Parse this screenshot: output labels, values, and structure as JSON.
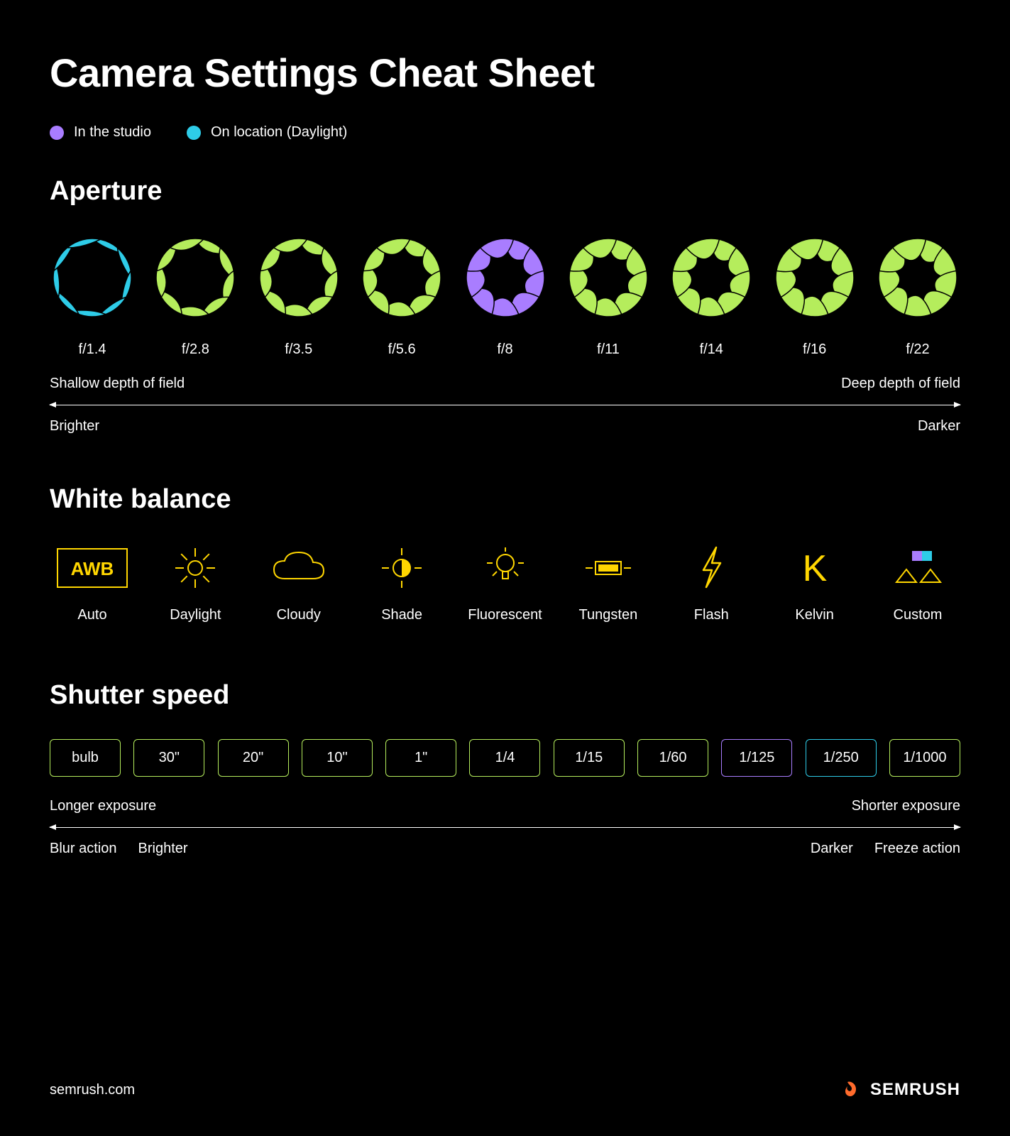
{
  "title": "Camera Settings Cheat Sheet",
  "colors": {
    "green": "#b5ed5c",
    "purple": "#a97dff",
    "cyan": "#2ecce8",
    "yellow": "#ffd600",
    "orange": "#ff6b2c",
    "white": "#ffffff",
    "black": "#000000"
  },
  "legend": {
    "items": [
      {
        "color": "#a97dff",
        "label": "In the studio"
      },
      {
        "color": "#2ecce8",
        "label": "On location (Daylight)"
      }
    ]
  },
  "aperture": {
    "title": "Aperture",
    "items": [
      {
        "label": "f/1.4",
        "color": "#2ecce8",
        "opening": 0.8
      },
      {
        "label": "f/2.8",
        "color": "#b5ed5c",
        "opening": 0.6
      },
      {
        "label": "f/3.5",
        "color": "#b5ed5c",
        "opening": 0.48
      },
      {
        "label": "f/5.6",
        "color": "#b5ed5c",
        "opening": 0.35
      },
      {
        "label": "f/8",
        "color": "#a97dff",
        "opening": 0.15
      },
      {
        "label": "f/11",
        "color": "#b5ed5c",
        "opening": 0.15
      },
      {
        "label": "f/14",
        "color": "#b5ed5c",
        "opening": 0.1
      },
      {
        "label": "f/16",
        "color": "#b5ed5c",
        "opening": 0.06
      },
      {
        "label": "f/22",
        "color": "#b5ed5c",
        "opening": 0.02
      }
    ],
    "scale_top_left": "Shallow depth of field",
    "scale_top_right": "Deep depth of field",
    "scale_bottom_left": "Brighter",
    "scale_bottom_right": "Darker"
  },
  "white_balance": {
    "title": "White balance",
    "items": [
      {
        "label": "Auto",
        "icon": "awb"
      },
      {
        "label": "Daylight",
        "icon": "sun"
      },
      {
        "label": "Cloudy",
        "icon": "cloud"
      },
      {
        "label": "Shade",
        "icon": "shade"
      },
      {
        "label": "Fluorescent",
        "icon": "fluorescent"
      },
      {
        "label": "Tungsten",
        "icon": "tungsten"
      },
      {
        "label": "Flash",
        "icon": "flash"
      },
      {
        "label": "Kelvin",
        "icon": "kelvin"
      },
      {
        "label": "Custom",
        "icon": "custom"
      }
    ]
  },
  "shutter": {
    "title": "Shutter speed",
    "items": [
      {
        "label": "bulb",
        "border_color": "#b5ed5c"
      },
      {
        "label": "30\"",
        "border_color": "#b5ed5c"
      },
      {
        "label": "20\"",
        "border_color": "#b5ed5c"
      },
      {
        "label": "10\"",
        "border_color": "#b5ed5c"
      },
      {
        "label": "1\"",
        "border_color": "#b5ed5c"
      },
      {
        "label": "1/4",
        "border_color": "#b5ed5c"
      },
      {
        "label": "1/15",
        "border_color": "#b5ed5c"
      },
      {
        "label": "1/60",
        "border_color": "#b5ed5c"
      },
      {
        "label": "1/125",
        "border_color": "#a97dff"
      },
      {
        "label": "1/250",
        "border_color": "#2ecce8"
      },
      {
        "label": "1/1000",
        "border_color": "#b5ed5c"
      }
    ],
    "scale_top_left": "Longer exposure",
    "scale_top_right": "Shorter exposure",
    "scale_bottom_left_a": "Blur action",
    "scale_bottom_left_b": "Brighter",
    "scale_bottom_right_a": "Darker",
    "scale_bottom_right_b": "Freeze action"
  },
  "footer": {
    "url": "semrush.com",
    "brand": "SEMRUSH"
  }
}
